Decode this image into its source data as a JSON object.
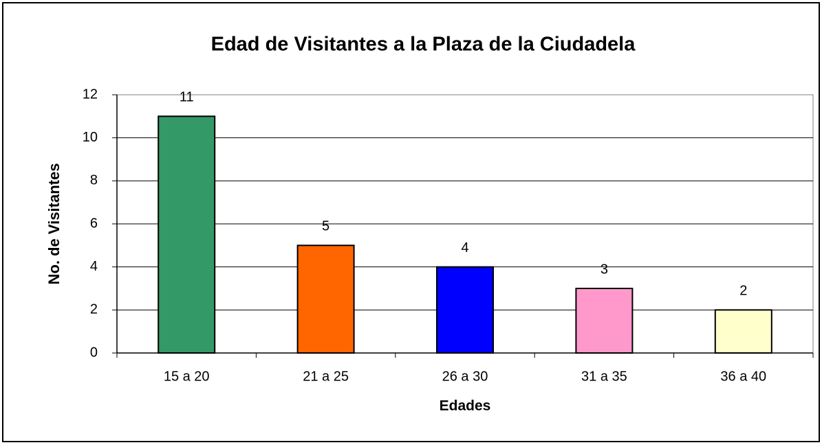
{
  "chart_data": {
    "type": "bar",
    "title": "Edad de Visitantes a la Plaza de la Ciudadela",
    "x_label": "Edades",
    "y_label": "No. de Visitantes",
    "categories": [
      "15 a 20",
      "21 a 25",
      "26 a 30",
      "31 a 35",
      "36 a 40"
    ],
    "values": [
      11,
      5,
      4,
      3,
      2
    ],
    "colors": [
      "#339966",
      "#ff6600",
      "#0000ff",
      "#ff99cc",
      "#ffffcc"
    ],
    "ylim": [
      0,
      12
    ],
    "yticks": [
      0,
      2,
      4,
      6,
      8,
      10,
      12
    ],
    "grid": true
  }
}
